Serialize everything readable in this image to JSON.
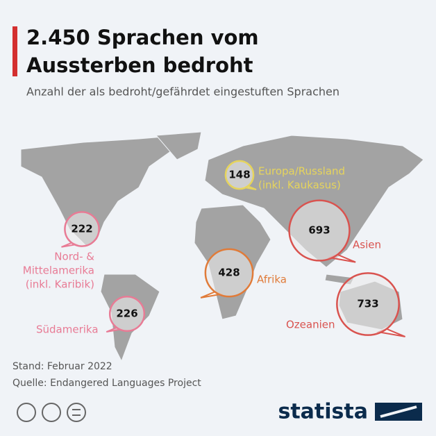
{
  "header": {
    "title": [
      "2.450 Sprachen vom",
      "Aussterben bedroht"
    ],
    "subtitle": "Anzahl der als bedroht/gefährdet eingestuften Sprachen"
  },
  "regions": [
    {
      "label": [
        "Europa/Russland",
        "(inkl. Kaukasus)"
      ],
      "value": 148,
      "color": "#e6d45c"
    },
    {
      "label": [
        "Asien"
      ],
      "value": 693,
      "color": "#d9534f"
    },
    {
      "label": [
        "Afrika"
      ],
      "value": 428,
      "color": "#e07b39"
    },
    {
      "label": [
        "Ozeanien"
      ],
      "value": 733,
      "color": "#d9534f"
    },
    {
      "label": [
        "Nord- &",
        "Mittelamerika",
        "(inkl. Karibik)"
      ],
      "value": 222,
      "color": "#e87b95"
    },
    {
      "label": [
        "Südamerika"
      ],
      "value": 226,
      "color": "#e87b95"
    }
  ],
  "footer": {
    "date": "Stand: Februar 2022",
    "source": "Quelle: Endangered Languages Project",
    "brand": "statista"
  }
}
